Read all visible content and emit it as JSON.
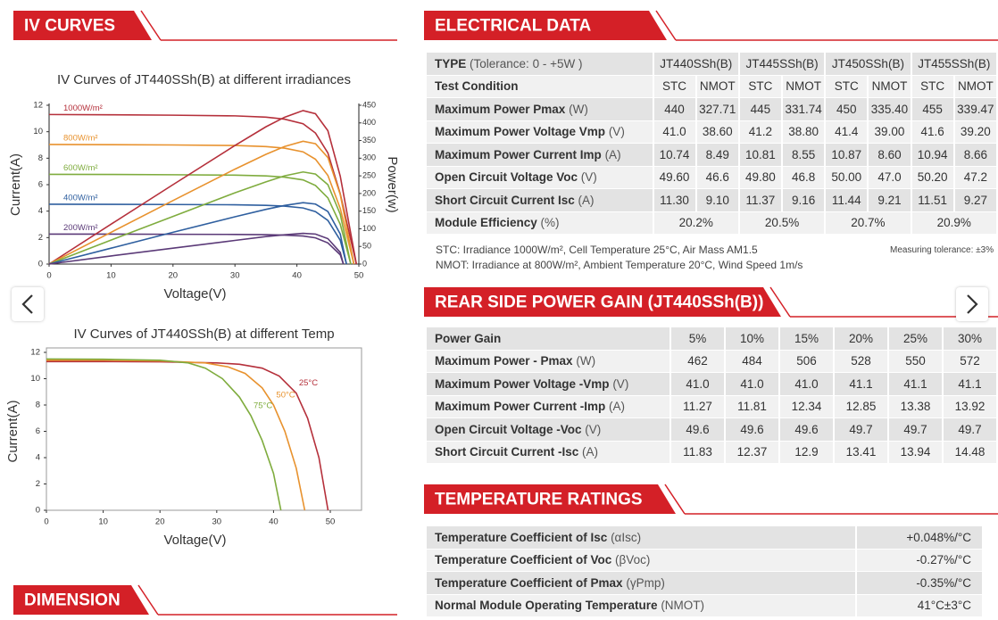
{
  "sections": {
    "iv_curves": "IV CURVES",
    "dimension": "DIMENSION",
    "electrical": "ELECTRICAL DATA",
    "rear": "REAR SIDE POWER GAIN (JT440SSh(B))",
    "temperature": "TEMPERATURE RATINGS"
  },
  "chart_data": [
    {
      "type": "line",
      "title": "IV Curves of JT440SSh(B) at different irradiances",
      "xlabel": "Voltage(V)",
      "ylabel": "Current(A)",
      "y2label": "Power(w)",
      "xlim": [
        0,
        50
      ],
      "xticks": [
        0,
        10,
        20,
        30,
        40,
        50
      ],
      "ylim": [
        0,
        12
      ],
      "yticks": [
        0,
        2,
        4,
        6,
        8,
        10,
        12
      ],
      "y2lim": [
        0,
        450
      ],
      "y2ticks": [
        0,
        50,
        100,
        150,
        200,
        250,
        300,
        350,
        400,
        450
      ],
      "series": [
        {
          "name": "1000W/m²",
          "color": "#b5303b",
          "x": [
            0,
            10,
            20,
            30,
            35,
            38,
            41,
            43,
            45,
            47,
            49.6
          ],
          "values": [
            11.3,
            11.28,
            11.25,
            11.2,
            11.1,
            10.95,
            10.6,
            9.9,
            8.4,
            5.3,
            0
          ]
        },
        {
          "name": "800W/m²",
          "color": "#e8922e",
          "x": [
            0,
            10,
            20,
            30,
            35,
            38,
            41,
            43,
            45,
            47,
            49.2
          ],
          "values": [
            9.04,
            9.02,
            9.0,
            8.96,
            8.88,
            8.76,
            8.48,
            7.92,
            6.7,
            4.2,
            0
          ]
        },
        {
          "name": "600W/m²",
          "color": "#7fac3e",
          "x": [
            0,
            10,
            20,
            30,
            35,
            38,
            41,
            43,
            45,
            47,
            48.7
          ],
          "values": [
            6.78,
            6.77,
            6.75,
            6.72,
            6.66,
            6.57,
            6.36,
            5.94,
            5.0,
            3.0,
            0
          ]
        },
        {
          "name": "400W/m²",
          "color": "#2f5f9f",
          "x": [
            0,
            10,
            20,
            30,
            35,
            38,
            41,
            43,
            45,
            47,
            48
          ],
          "values": [
            4.52,
            4.51,
            4.5,
            4.48,
            4.44,
            4.38,
            4.24,
            3.96,
            3.3,
            1.8,
            0
          ]
        },
        {
          "name": "200W/m²",
          "color": "#5b3a78",
          "x": [
            0,
            10,
            20,
            30,
            35,
            38,
            41,
            43,
            45,
            47,
            47.5
          ],
          "values": [
            2.26,
            2.26,
            2.25,
            2.24,
            2.22,
            2.19,
            2.12,
            1.98,
            1.6,
            0.7,
            0
          ]
        },
        {
          "axis": "y2",
          "color": "#b5303b",
          "x": [
            0,
            10,
            20,
            30,
            35,
            38,
            41,
            43,
            45,
            47,
            49.6
          ],
          "values": [
            0,
            113,
            225,
            336,
            389,
            416,
            435,
            426,
            378,
            249,
            0
          ]
        },
        {
          "axis": "y2",
          "color": "#e8922e",
          "x": [
            0,
            10,
            20,
            30,
            35,
            38,
            41,
            43,
            45,
            47,
            49.2
          ],
          "values": [
            0,
            90,
            180,
            269,
            311,
            333,
            348,
            341,
            302,
            197,
            0
          ]
        },
        {
          "axis": "y2",
          "color": "#7fac3e",
          "x": [
            0,
            10,
            20,
            30,
            35,
            38,
            41,
            43,
            45,
            47,
            48.7
          ],
          "values": [
            0,
            68,
            135,
            202,
            233,
            250,
            261,
            255,
            225,
            141,
            0
          ]
        },
        {
          "axis": "y2",
          "color": "#2f5f9f",
          "x": [
            0,
            10,
            20,
            30,
            35,
            38,
            41,
            43,
            45,
            47,
            48
          ],
          "values": [
            0,
            45,
            90,
            134,
            155,
            166,
            174,
            170,
            149,
            85,
            0
          ]
        },
        {
          "axis": "y2",
          "color": "#5b3a78",
          "x": [
            0,
            10,
            20,
            30,
            35,
            38,
            41,
            43,
            45,
            47,
            47.5
          ],
          "values": [
            0,
            23,
            45,
            67,
            78,
            83,
            87,
            85,
            72,
            33,
            0
          ]
        }
      ]
    },
    {
      "type": "line",
      "title": "IV Curves of JT440SSh(B) at different Temp",
      "xlabel": "Voltage(V)",
      "ylabel": "Current(A)",
      "xlim": [
        0,
        55.5
      ],
      "xticks": [
        0,
        10,
        20,
        30,
        40,
        50
      ],
      "ylim": [
        0,
        12
      ],
      "yticks": [
        0,
        2,
        4,
        6,
        8,
        10,
        12
      ],
      "series": [
        {
          "name": "25°C",
          "color": "#b5303b",
          "x": [
            0,
            10,
            20,
            30,
            34,
            38,
            41,
            44,
            46,
            48,
            49.6
          ],
          "values": [
            11.3,
            11.3,
            11.28,
            11.2,
            11.1,
            10.8,
            10.2,
            8.9,
            7.0,
            4.0,
            0
          ]
        },
        {
          "name": "50°C",
          "color": "#e8922e",
          "x": [
            0,
            10,
            20,
            28,
            32,
            35,
            38,
            40,
            42,
            44,
            45.5
          ],
          "values": [
            11.4,
            11.4,
            11.35,
            11.2,
            10.9,
            10.4,
            9.3,
            8.0,
            6.0,
            3.2,
            0
          ]
        },
        {
          "name": "75°C",
          "color": "#7fac3e",
          "x": [
            0,
            10,
            20,
            25,
            28,
            31,
            34,
            36,
            38,
            40,
            41.3
          ],
          "values": [
            11.5,
            11.48,
            11.4,
            11.2,
            10.8,
            10.0,
            8.6,
            7.2,
            5.3,
            2.8,
            0
          ]
        }
      ]
    }
  ],
  "electrical_data": {
    "rows": [
      {
        "label": "TYPE",
        "unit": "(Tolerance: 0 - +5W )",
        "cells": [
          "JT440SSh(B)",
          "JT445SSh(B)",
          "JT450SSh(B)",
          "JT455SSh(B)"
        ]
      },
      {
        "label": "Test Condition",
        "cells": [
          "STC",
          "NMOT",
          "STC",
          "NMOT",
          "STC",
          "NMOT",
          "STC",
          "NMOT"
        ]
      },
      {
        "label": "Maximum Power Pmax",
        "unit": "(W)",
        "cells": [
          "440",
          "327.71",
          "445",
          "331.74",
          "450",
          "335.40",
          "455",
          "339.47"
        ]
      },
      {
        "label": "Maximum Power Voltage Vmp",
        "unit": "(V)",
        "cells": [
          "41.0",
          "38.60",
          "41.2",
          "38.80",
          "41.4",
          "39.00",
          "41.6",
          "39.20"
        ]
      },
      {
        "label": "Maximum Power Current Imp",
        "unit": "(A)",
        "cells": [
          "10.74",
          "8.49",
          "10.81",
          "8.55",
          "10.87",
          "8.60",
          "10.94",
          "8.66"
        ]
      },
      {
        "label": "Open Circuit Voltage Voc",
        "unit": "(V)",
        "cells": [
          "49.60",
          "46.6",
          "49.80",
          "46.8",
          "50.00",
          "47.0",
          "50.20",
          "47.2"
        ]
      },
      {
        "label": "Short Circuit Current Isc",
        "unit": "(A)",
        "cells": [
          "11.30",
          "9.10",
          "11.37",
          "9.16",
          "11.44",
          "9.21",
          "11.51",
          "9.27"
        ]
      },
      {
        "label": "Module Efficiency",
        "unit": "(%)",
        "cells": [
          "20.2%",
          "20.5%",
          "20.7%",
          "20.9%"
        ]
      }
    ],
    "notes": [
      "STC: Irradiance 1000W/m², Cell Temperature 25°C, Air Mass AM1.5",
      "NMOT: Irradiance at 800W/m², Ambient Temperature 20°C, Wind Speed 1m/s"
    ],
    "tolerance": "Measuring tolerance: ±3%"
  },
  "rear_side_gain": {
    "rows": [
      {
        "label": "Power Gain",
        "cells": [
          "5%",
          "10%",
          "15%",
          "20%",
          "25%",
          "30%"
        ]
      },
      {
        "label": "Maximum Power - Pmax",
        "unit": "(W)",
        "cells": [
          "462",
          "484",
          "506",
          "528",
          "550",
          "572"
        ]
      },
      {
        "label": "Maximum Power Voltage -Vmp",
        "unit": "(V)",
        "cells": [
          "41.0",
          "41.0",
          "41.0",
          "41.1",
          "41.1",
          "41.1"
        ]
      },
      {
        "label": "Maximum Power Current -Imp",
        "unit": "(A)",
        "cells": [
          "11.27",
          "11.81",
          "12.34",
          "12.85",
          "13.38",
          "13.92"
        ]
      },
      {
        "label": "Open Circuit Voltage -Voc",
        "unit": "(V)",
        "cells": [
          "49.6",
          "49.6",
          "49.6",
          "49.7",
          "49.7",
          "49.7"
        ]
      },
      {
        "label": "Short Circuit Current -Isc",
        "unit": "(A)",
        "cells": [
          "11.83",
          "12.37",
          "12.9",
          "13.41",
          "13.94",
          "14.48"
        ]
      }
    ]
  },
  "temperature_ratings": {
    "rows": [
      {
        "label": "Temperature Coefficient of Isc",
        "unit": "(αIsc)",
        "cells": [
          "+0.048%/°C"
        ]
      },
      {
        "label": "Temperature Coefficient of Voc",
        "unit": "(βVoc)",
        "cells": [
          "-0.27%/°C"
        ]
      },
      {
        "label": "Temperature Coefficient of Pmax",
        "unit": "(γPmp)",
        "cells": [
          "-0.35%/°C"
        ]
      },
      {
        "label": "Normal Module Operating Temperature",
        "unit": "(NMOT)",
        "cells": [
          "41°C±3°C"
        ]
      }
    ]
  }
}
